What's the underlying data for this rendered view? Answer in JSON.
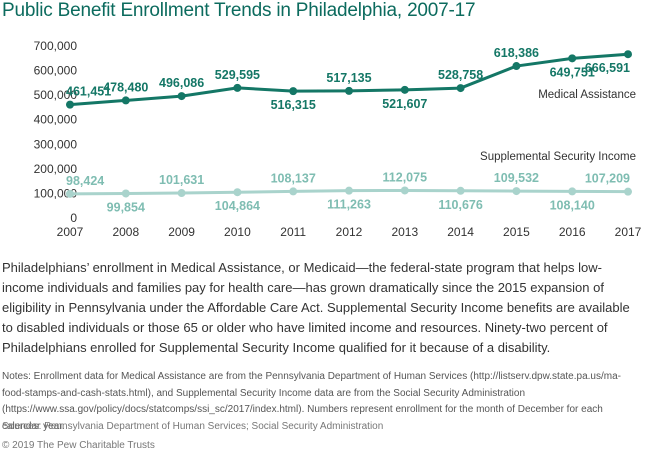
{
  "title": "Public Benefit Enrollment Trends in Philadelphia, 2007-17",
  "body_text": "Philadelphians’ enrollment in Medical Assistance, or Medicaid—the federal-state program that helps low-income individuals and families pay for health care—has grown dramatically since the 2015 expansion of eligibility in Pennsylvania under the Affordable Care Act. Supplemental Security Income benefits are available to disabled individuals or those 65 or older who have limited income and resources. Ninety-two percent of Philadelphians enrolled for Supplemental Security Income qualified for it because of a disability.",
  "notes": "Notes: Enrollment data for Medical Assistance are from the Pennsylvania Department of Human Services (http://listserv.dpw.state.pa.us/ma-food-stamps-and-cash-stats.html), and Supplemental Security Income data are from the Social Security Administration (https://www.ssa.gov/policy/docs/statcomps/ssi_sc/2017/index.html). Numbers represent enrollment for the month of December for each calendar year.",
  "sources": "Sources: Pennsylvania Department of Human Services; Social Security Administration",
  "copyright": "© 2019 The Pew Charitable Trusts",
  "colors": {
    "title": "#0c6b5e",
    "medical": "#147766",
    "ssi": "#a9d3cc",
    "ssi_label": "#7fbdb2",
    "axis": "#333333",
    "grid": "#dddddd"
  },
  "chart_data": {
    "type": "line",
    "x": [
      "2007",
      "2008",
      "2009",
      "2010",
      "2011",
      "2012",
      "2013",
      "2014",
      "2015",
      "2016",
      "2017"
    ],
    "ylim": [
      0,
      700000
    ],
    "yticks": [
      "0",
      "100,000",
      "200,000",
      "300,000",
      "400,000",
      "500,000",
      "600,000",
      "700,000"
    ],
    "series": [
      {
        "name": "Medical Assistance",
        "values": [
          461451,
          478480,
          496086,
          529595,
          516315,
          517135,
          521607,
          528758,
          618386,
          649751,
          666591
        ],
        "labels": [
          "461,451",
          "478,480",
          "496,086",
          "529,595",
          "516,315",
          "517,135",
          "521,607",
          "528,758",
          "618,386",
          "649,751",
          "666,591"
        ]
      },
      {
        "name": "Supplemental Security Income",
        "values": [
          98424,
          99854,
          101631,
          104864,
          108137,
          111263,
          112075,
          110676,
          109532,
          108140,
          107209
        ],
        "labels": [
          "98,424",
          "99,854",
          "101,631",
          "104,864",
          "108,137",
          "111,263",
          "112,075",
          "110,676",
          "109,532",
          "108,140",
          "107,209"
        ]
      }
    ],
    "grid": false,
    "legend": "inline labels"
  }
}
